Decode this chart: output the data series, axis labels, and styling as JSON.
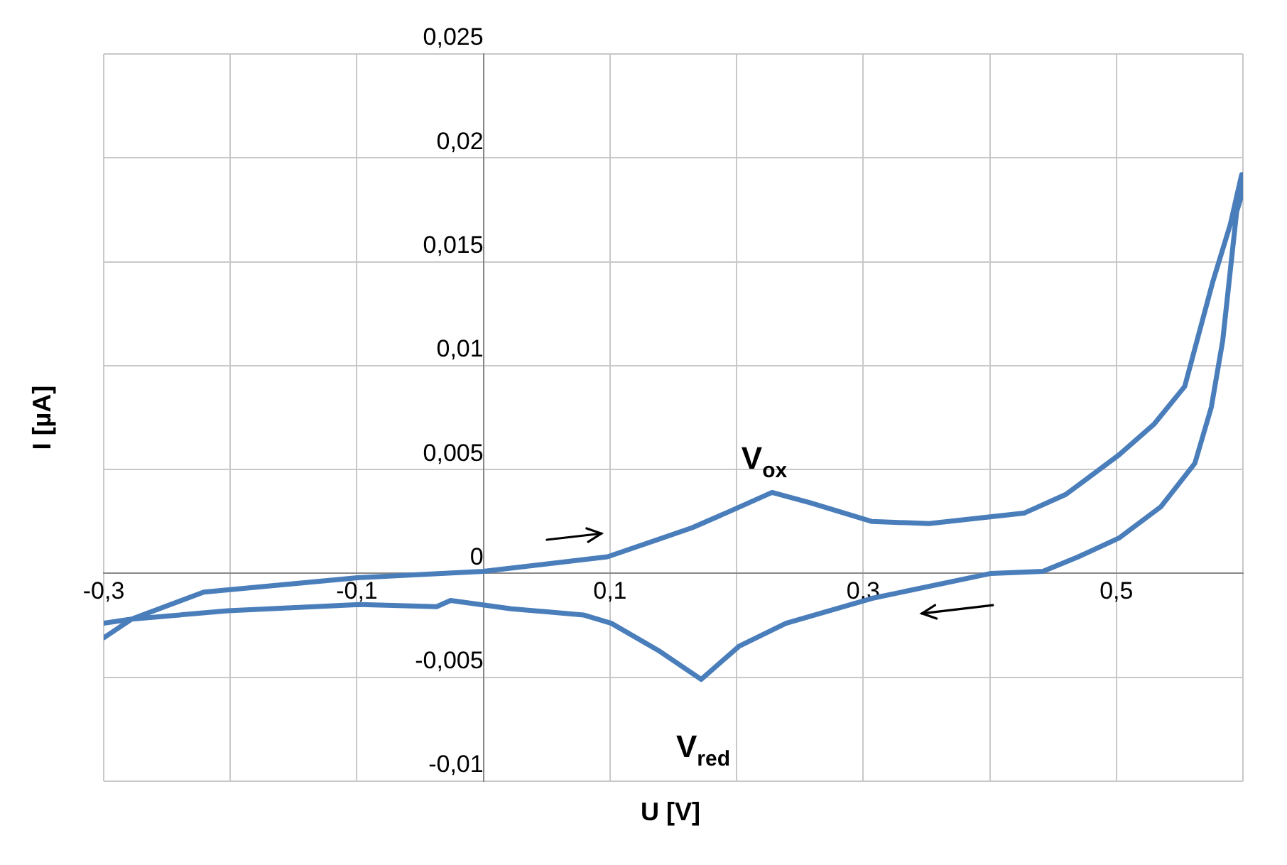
{
  "chart_data": {
    "type": "line",
    "xlabel": "U [V]",
    "ylabel": "I [µA]",
    "x": [
      -0.3,
      -0.278,
      -0.221,
      -0.098,
      0,
      0.098,
      0.165,
      0.195,
      0.228,
      0.258,
      0.307,
      0.352,
      0.427,
      0.46,
      0.502,
      0.53,
      0.554,
      0.576,
      0.59,
      0.599,
      0.6,
      0.598,
      0.595,
      0.584,
      0.575,
      0.562,
      0.535,
      0.502,
      0.47,
      0.442,
      0.401,
      0.307,
      0.239,
      0.202,
      0.172,
      0.138,
      0.101,
      0.079,
      0.022,
      -0.026,
      -0.037,
      -0.098,
      -0.202,
      -0.278,
      -0.3
    ],
    "series": [
      {
        "color": "#4a7ebb",
        "values": [
          -0.0031,
          -0.0022,
          -0.0009,
          -0.0002,
          0.0001,
          0.0008,
          0.0022,
          0.003,
          0.0039,
          0.0034,
          0.0025,
          0.0024,
          0.0029,
          0.0038,
          0.0057,
          0.0072,
          0.009,
          0.014,
          0.0168,
          0.0192,
          0.0185,
          0.018,
          0.0174,
          0.0112,
          0.008,
          0.0053,
          0.0032,
          0.0017,
          0.0008,
          0.0001,
          0,
          -0.0012,
          -0.0024,
          -0.0035,
          -0.0051,
          -0.0037,
          -0.0024,
          -0.002,
          -0.0017,
          -0.0013,
          -0.0016,
          -0.0015,
          -0.0018,
          -0.0022,
          -0.0024
        ]
      }
    ],
    "xlim": [
      -0.3,
      0.6
    ],
    "xticks": [
      {
        "value": -0.3,
        "label": "-0,3"
      },
      {
        "value": -0.2,
        "label": null
      },
      {
        "value": -0.1,
        "label": "-0,1"
      },
      {
        "value": 0,
        "label": null
      },
      {
        "value": 0.1,
        "label": "0,1"
      },
      {
        "value": 0.2,
        "label": null
      },
      {
        "value": 0.3,
        "label": "0,3"
      },
      {
        "value": 0.4,
        "label": null
      },
      {
        "value": 0.5,
        "label": "0,5"
      },
      {
        "value": 0.6,
        "label": null
      }
    ],
    "ylim": [
      -0.01,
      0.025
    ],
    "yticks": [
      {
        "value": -0.01,
        "label": "-0,01"
      },
      {
        "value": -0.005,
        "label": "-0,005"
      },
      {
        "value": 0,
        "label": "0"
      },
      {
        "value": 0.005,
        "label": "0,005"
      },
      {
        "value": 0.01,
        "label": "0,01"
      },
      {
        "value": 0.015,
        "label": "0,015"
      },
      {
        "value": 0.02,
        "label": "0,02"
      },
      {
        "value": 0.025,
        "label": "0,025"
      }
    ],
    "grid": true,
    "legend": false,
    "marker": "none",
    "line_style": "solid",
    "annotations": [
      "V$_{ox}$",
      "V$_{red}$"
    ]
  }
}
